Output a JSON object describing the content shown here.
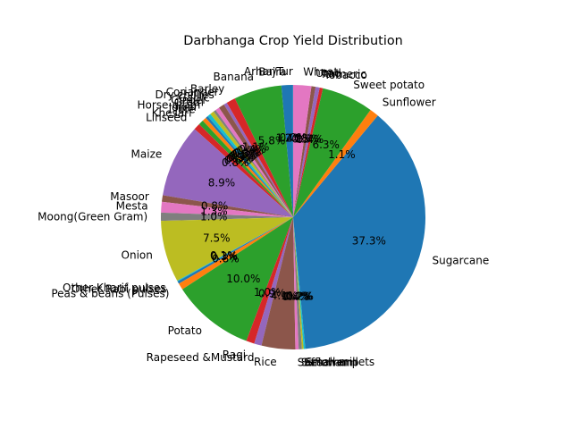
{
  "chart_data": {
    "type": "pie",
    "title": "Darbhanga Crop Yield Distribution",
    "start_angle_deg": 90,
    "direction": "counterclockwise",
    "slices": [
      {
        "label": "Arhar/Tur",
        "pct_label": "0.0%",
        "value": 0.03,
        "color": "#1f77b4"
      },
      {
        "label": "Bajra",
        "pct_label": "1.4%",
        "value": 1.4,
        "color": "#1f77b4"
      },
      {
        "label": "Banana",
        "pct_label": "5.8%",
        "value": 5.8,
        "color": "#2ca02c"
      },
      {
        "label": "Barley",
        "pct_label": "1.1%",
        "value": 1.1,
        "color": "#d62728"
      },
      {
        "label": "Coriander",
        "pct_label": "0.4%",
        "value": 0.4,
        "color": "#9467bd"
      },
      {
        "label": "Dry chillies",
        "pct_label": "0.7%",
        "value": 0.7,
        "color": "#8c564b"
      },
      {
        "label": "Garlic",
        "pct_label": "0.5%",
        "value": 0.5,
        "color": "#e377c2"
      },
      {
        "label": "Ginger",
        "pct_label": "0.3%",
        "value": 0.3,
        "color": "#7f7f7f"
      },
      {
        "label": "Gram",
        "pct_label": "0.5%",
        "value": 0.5,
        "color": "#bcbd22"
      },
      {
        "label": "Horse-gram",
        "pct_label": "0.4%",
        "value": 0.4,
        "color": "#17becf"
      },
      {
        "label": "Jowar",
        "pct_label": "0.3%",
        "value": 0.3,
        "color": "#1f77b4"
      },
      {
        "label": "Jute",
        "pct_label": "0.5%",
        "value": 0.5,
        "color": "#ff7f0e"
      },
      {
        "label": "Khesari",
        "pct_label": "0.6%",
        "value": 0.6,
        "color": "#2ca02c"
      },
      {
        "label": "Linseed",
        "pct_label": "0.8%",
        "value": 0.8,
        "color": "#d62728"
      },
      {
        "label": "Maize",
        "pct_label": "8.9%",
        "value": 8.9,
        "color": "#9467bd"
      },
      {
        "label": "Masoor",
        "pct_label": "0.8%",
        "value": 0.8,
        "color": "#8c564b"
      },
      {
        "label": "Mesta",
        "pct_label": "1.3%",
        "value": 1.3,
        "color": "#e377c2"
      },
      {
        "label": "Moong(Green Gram)",
        "pct_label": "1.0%",
        "value": 1.0,
        "color": "#7f7f7f"
      },
      {
        "label": "Onion",
        "pct_label": "7.5%",
        "value": 7.5,
        "color": "#bcbd22"
      },
      {
        "label": "Other Kharif pulses",
        "pct_label": "0.1%",
        "value": 0.1,
        "color": "#17becf"
      },
      {
        "label": "Other Rabi pulses",
        "pct_label": "0.3%",
        "value": 0.3,
        "color": "#1f77b4"
      },
      {
        "label": "Peas & beans (Pulses)",
        "pct_label": "0.8%",
        "value": 0.8,
        "color": "#ff7f0e"
      },
      {
        "label": "Potato",
        "pct_label": "10.0%",
        "value": 10.0,
        "color": "#2ca02c"
      },
      {
        "label": "Ragi",
        "pct_label": "1.0%",
        "value": 1.0,
        "color": "#d62728"
      },
      {
        "label": "Rapeseed &Mustard",
        "pct_label": "0.9%",
        "value": 0.9,
        "color": "#9467bd"
      },
      {
        "label": "Rice",
        "pct_label": "4.1%",
        "value": 4.1,
        "color": "#8c564b"
      },
      {
        "label": "Safflower",
        "pct_label": "0.4%",
        "value": 0.4,
        "color": "#e377c2"
      },
      {
        "label": "Sannhamp",
        "pct_label": "0.4%",
        "value": 0.4,
        "color": "#7f7f7f"
      },
      {
        "label": "Sesamum",
        "pct_label": "0.2%",
        "value": 0.2,
        "color": "#bcbd22"
      },
      {
        "label": "Small millets",
        "pct_label": "0.2%",
        "value": 0.2,
        "color": "#17becf"
      },
      {
        "label": "Sugarcane",
        "pct_label": "37.3%",
        "value": 37.3,
        "color": "#1f77b4"
      },
      {
        "label": "Sunflower",
        "pct_label": "1.1%",
        "value": 1.1,
        "color": "#ff7f0e"
      },
      {
        "label": "Sweet potato",
        "pct_label": "6.3%",
        "value": 6.3,
        "color": "#2ca02c"
      },
      {
        "label": "Tobacco",
        "pct_label": "0.4%",
        "value": 0.4,
        "color": "#d62728"
      },
      {
        "label": "Turmeric",
        "pct_label": "0.5%",
        "value": 0.5,
        "color": "#9467bd"
      },
      {
        "label": "Urad",
        "pct_label": "0.5%",
        "value": 0.5,
        "color": "#8c564b"
      },
      {
        "label": "Wheat",
        "pct_label": "2.2%",
        "value": 2.2,
        "color": "#e377c2"
      }
    ]
  }
}
